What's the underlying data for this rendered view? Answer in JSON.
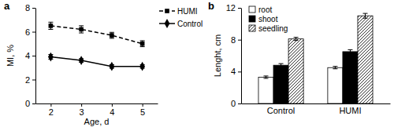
{
  "chart_data": [
    {
      "type": "line",
      "title": "a",
      "xlabel": "Age, d",
      "ylabel": "MI, %",
      "x": [
        2,
        3,
        4,
        5
      ],
      "series": [
        {
          "name": "Control",
          "color": "#000000",
          "marker": "diamond",
          "line_style": "solid",
          "values": [
            3.9,
            3.6,
            3.1,
            3.1
          ],
          "errors": [
            0.2,
            0.15,
            0.15,
            0.15
          ]
        },
        {
          "name": "HUMI",
          "color": "#000000",
          "marker": "square",
          "line_style": "dashed",
          "values": [
            6.5,
            6.2,
            5.7,
            5.0
          ],
          "errors": [
            0.3,
            0.3,
            0.25,
            0.25
          ]
        }
      ],
      "xlim": [
        1.5,
        5.5
      ],
      "xticks": [
        2,
        3,
        4,
        5
      ],
      "ylim": [
        0,
        8
      ],
      "yticks": [
        0,
        2,
        4,
        6,
        8
      ],
      "legend": "upper right"
    },
    {
      "type": "bar",
      "title": "b",
      "ylabel": "Lenght, cm",
      "categories": [
        "Control",
        "HUMI"
      ],
      "series": [
        {
          "name": "root",
          "color": "#ffffff",
          "line_style": "solid",
          "values": [
            3.3,
            4.5
          ],
          "errors": [
            0.15,
            0.15
          ]
        },
        {
          "name": "shoot",
          "color": "#000000",
          "line_style": "solid",
          "values": [
            4.8,
            6.5
          ],
          "errors": [
            0.2,
            0.25
          ]
        },
        {
          "name": "seedling",
          "color": "#000000",
          "line_style": "hatch",
          "values": [
            8.1,
            11.0
          ],
          "errors": [
            0.2,
            0.3
          ]
        }
      ],
      "ylim": [
        0,
        12
      ],
      "yticks": [
        0,
        4,
        8,
        12
      ],
      "legend": "upper left"
    }
  ]
}
